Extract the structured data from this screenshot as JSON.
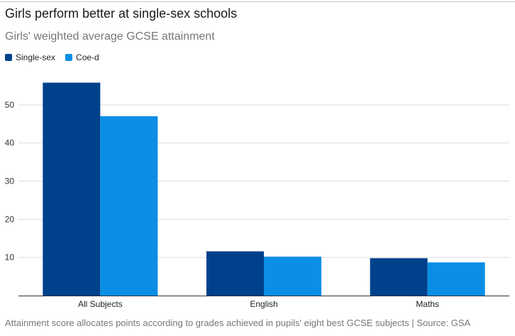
{
  "title": "Girls perform better at single-sex schools",
  "subtitle": "Girls' weighted average GCSE attainment",
  "footer": "Attainment score allocates points according to grades achieved in pupils' eight best GCSE subjects | Source: GSA",
  "colors": {
    "single_sex": "#00418c",
    "coed": "#0a8ee6",
    "grid": "#dddddd",
    "axis": "#333333"
  },
  "chart_data": {
    "type": "bar",
    "categories": [
      "All Subjects",
      "English",
      "Maths"
    ],
    "series": [
      {
        "name": "Single-sex",
        "values": [
          55.8,
          11.6,
          9.8
        ]
      },
      {
        "name": "Coe-d",
        "values": [
          47.0,
          10.2,
          8.7
        ]
      }
    ],
    "yticks": [
      10,
      20,
      30,
      40,
      50
    ],
    "ylim": [
      0,
      60
    ],
    "grid": true,
    "legend": "top-left"
  }
}
